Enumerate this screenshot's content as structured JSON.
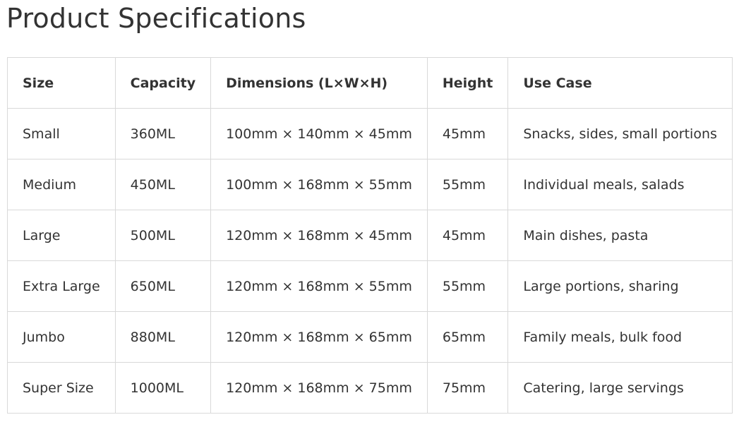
{
  "title": "Product Specifications",
  "table": {
    "headers": [
      "Size",
      "Capacity",
      "Dimensions (L×W×H)",
      "Height",
      "Use Case"
    ],
    "rows": [
      [
        "Small",
        "360ML",
        "100mm × 140mm × 45mm",
        "45mm",
        "Snacks, sides, small portions"
      ],
      [
        "Medium",
        "450ML",
        "100mm × 168mm × 55mm",
        "55mm",
        "Individual meals, salads"
      ],
      [
        "Large",
        "500ML",
        "120mm × 168mm × 45mm",
        "45mm",
        "Main dishes, pasta"
      ],
      [
        "Extra Large",
        "650ML",
        "120mm × 168mm × 55mm",
        "55mm",
        "Large portions, sharing"
      ],
      [
        "Jumbo",
        "880ML",
        "120mm × 168mm × 65mm",
        "65mm",
        "Family meals, bulk food"
      ],
      [
        "Super Size",
        "1000ML",
        "120mm × 168mm × 75mm",
        "75mm",
        "Catering, large servings"
      ]
    ]
  }
}
